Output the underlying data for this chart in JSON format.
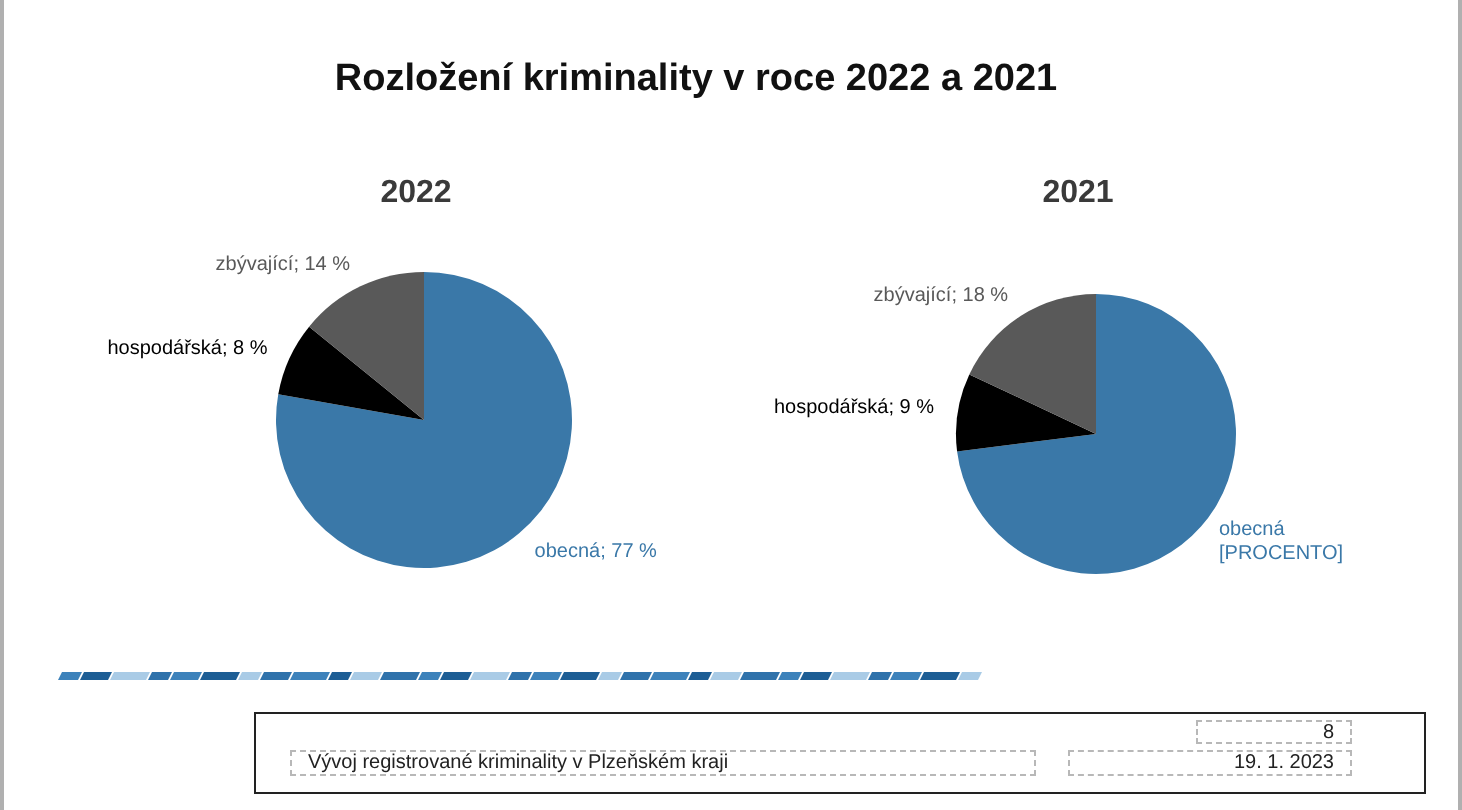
{
  "chart_data": [
    {
      "type": "other",
      "title": "Rozložení kriminality v roce 2022 a 2021"
    },
    {
      "type": "pie",
      "title": "2022",
      "categories": [
        "obecná",
        "hospodářská",
        "zbývající"
      ],
      "values": [
        77,
        8,
        14
      ],
      "colors": [
        "#3a78a8",
        "#000000",
        "#595959"
      ],
      "value_labels": [
        "; 77 %",
        "; 8 %",
        "; 14 %"
      ]
    },
    {
      "type": "pie",
      "title": "2021",
      "categories": [
        "obecná",
        "hospodářská",
        "zbývající"
      ],
      "values": [
        73,
        9,
        18
      ],
      "colors": [
        "#3a78a8",
        "#000000",
        "#595959"
      ],
      "value_labels": [
        "[PROCENTO]",
        "; 9 %",
        "; 18 %"
      ]
    },
    {
      "type": "other",
      "annotations": [
        "Vývoj registrované kriminality v Plzeňském kraji",
        "8",
        "19. 1. 2023"
      ]
    }
  ]
}
